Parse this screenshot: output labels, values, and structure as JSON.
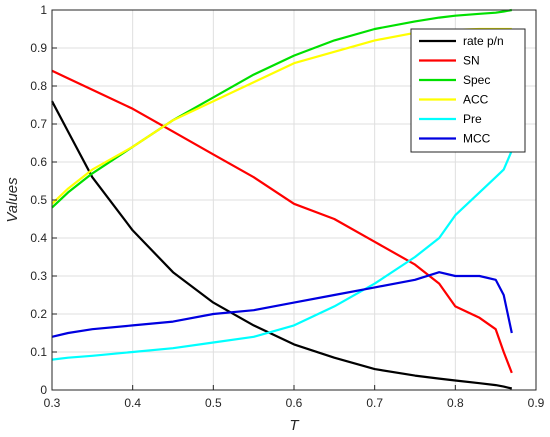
{
  "chart_data": {
    "type": "line",
    "title": "",
    "xlabel": "T",
    "ylabel": "Values",
    "xlim": [
      0.3,
      0.9
    ],
    "ylim": [
      0,
      1
    ],
    "x_ticks": [
      "0.3",
      "0.4",
      "0.5",
      "0.6",
      "0.7",
      "0.8",
      "0.9"
    ],
    "y_ticks": [
      "0",
      "0.1",
      "0.2",
      "0.3",
      "0.4",
      "0.5",
      "0.6",
      "0.7",
      "0.8",
      "0.9",
      "1"
    ],
    "grid": true,
    "legend_position": "top-right",
    "x": [
      0.3,
      0.32,
      0.35,
      0.4,
      0.45,
      0.5,
      0.55,
      0.6,
      0.65,
      0.7,
      0.75,
      0.78,
      0.8,
      0.83,
      0.85,
      0.86,
      0.87
    ],
    "series": [
      {
        "name": "rate p/n",
        "color": "#000000",
        "values": [
          0.76,
          0.68,
          0.56,
          0.42,
          0.31,
          0.23,
          0.17,
          0.12,
          0.085,
          0.055,
          0.038,
          0.03,
          0.025,
          0.018,
          0.013,
          0.009,
          0.004
        ]
      },
      {
        "name": "SN",
        "color": "#ff0000",
        "values": [
          0.84,
          0.82,
          0.79,
          0.74,
          0.68,
          0.62,
          0.56,
          0.49,
          0.45,
          0.39,
          0.33,
          0.28,
          0.22,
          0.19,
          0.16,
          0.1,
          0.045
        ]
      },
      {
        "name": "Spec",
        "color": "#00e000",
        "values": [
          0.48,
          0.52,
          0.57,
          0.64,
          0.71,
          0.77,
          0.83,
          0.88,
          0.92,
          0.95,
          0.97,
          0.98,
          0.985,
          0.99,
          0.993,
          0.996,
          1.0
        ]
      },
      {
        "name": "ACC",
        "color": "#ffff00",
        "values": [
          0.49,
          0.53,
          0.58,
          0.64,
          0.71,
          0.76,
          0.81,
          0.86,
          0.89,
          0.92,
          0.94,
          0.945,
          0.948,
          0.95,
          0.95,
          0.95,
          0.95
        ]
      },
      {
        "name": "Pre",
        "color": "#00ffff",
        "values": [
          0.08,
          0.085,
          0.09,
          0.1,
          0.11,
          0.125,
          0.14,
          0.17,
          0.22,
          0.28,
          0.35,
          0.4,
          0.46,
          0.52,
          0.56,
          0.58,
          0.63
        ]
      },
      {
        "name": "MCC",
        "color": "#0000e0",
        "values": [
          0.14,
          0.15,
          0.16,
          0.17,
          0.18,
          0.2,
          0.21,
          0.23,
          0.25,
          0.27,
          0.29,
          0.31,
          0.3,
          0.3,
          0.29,
          0.25,
          0.15
        ]
      }
    ]
  }
}
